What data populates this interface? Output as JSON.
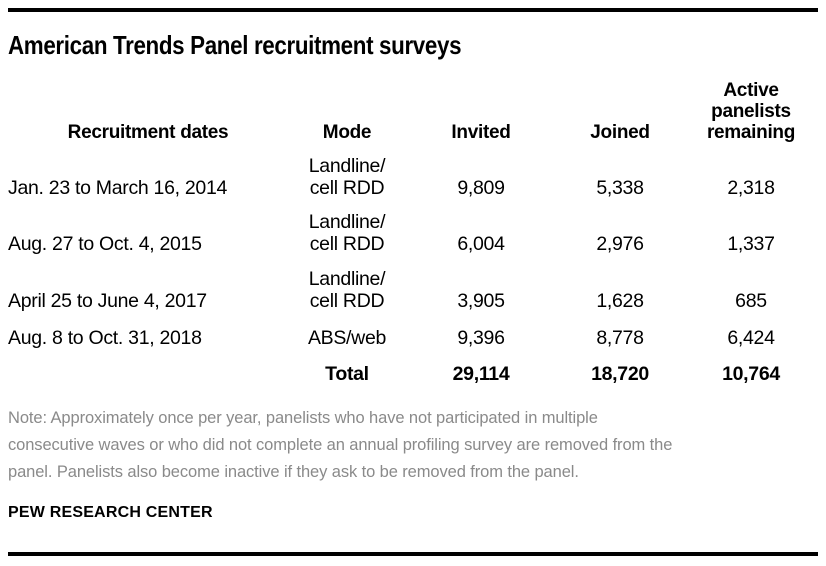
{
  "page": {
    "title": "American Trends Panel recruitment surveys",
    "source": "PEW RESEARCH CENTER"
  },
  "note_lines": {
    "0": "Note: Approximately once per year, panelists who have not participated in multiple",
    "1": "consecutive waves or who did not complete an annual profiling survey are removed from the",
    "2": "panel. Panelists also become inactive if they ask to be removed from the panel."
  },
  "table": {
    "headers": {
      "dates": "Recruitment dates",
      "mode": "Mode",
      "invited": "Invited",
      "joined": "Joined",
      "remaining_lines": [
        "Active",
        "panelists",
        "remaining"
      ]
    },
    "rows": [
      {
        "dates": "Jan. 23 to March 16, 2014",
        "mode_lines": [
          "Landline/",
          "cell RDD"
        ],
        "invited": "9,809",
        "joined": "5,338",
        "remaining": "2,318"
      },
      {
        "dates": "Aug. 27 to Oct. 4, 2015",
        "mode_lines": [
          "Landline/",
          "cell RDD"
        ],
        "invited": "6,004",
        "joined": "2,976",
        "remaining": "1,337"
      },
      {
        "dates": "April 25 to June 4, 2017",
        "mode_lines": [
          "Landline/",
          "cell RDD"
        ],
        "invited": "3,905",
        "joined": "1,628",
        "remaining": "685"
      },
      {
        "dates": "Aug. 8 to Oct. 31, 2018",
        "mode_lines": [
          "ABS/web"
        ],
        "invited": "9,396",
        "joined": "8,778",
        "remaining": "6,424"
      }
    ],
    "total": {
      "label": "Total",
      "invited": "29,114",
      "joined": "18,720",
      "remaining": "10,764"
    }
  },
  "colors": {
    "text": "#000000",
    "note_gray": "#8a8a8a",
    "rule": "#000000",
    "background": "#ffffff"
  },
  "chart_data": {
    "type": "table",
    "title": "American Trends Panel recruitment surveys",
    "columns": [
      "Recruitment dates",
      "Mode",
      "Invited",
      "Joined",
      "Active panelists remaining"
    ],
    "rows": [
      [
        "Jan. 23 to March 16, 2014",
        "Landline/cell RDD",
        9809,
        5338,
        2318
      ],
      [
        "Aug. 27 to Oct. 4, 2015",
        "Landline/cell RDD",
        6004,
        2976,
        1337
      ],
      [
        "April 25 to June 4, 2017",
        "Landline/cell RDD",
        3905,
        1628,
        685
      ],
      [
        "Aug. 8 to Oct. 31, 2018",
        "ABS/web",
        9396,
        8778,
        6424
      ],
      [
        "Total",
        "",
        29114,
        18720,
        10764
      ]
    ],
    "note": "Note: Approximately once per year, panelists who have not participated in multiple consecutive waves or who did not complete an annual profiling survey are removed from the panel. Panelists also become inactive if they ask to be removed from the panel.",
    "source": "PEW RESEARCH CENTER"
  }
}
